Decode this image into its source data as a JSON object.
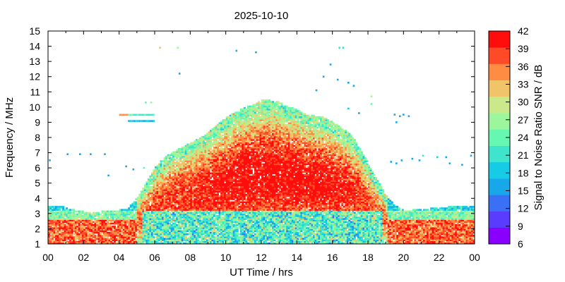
{
  "chart_data": {
    "type": "heatmap",
    "title": "2025-10-10",
    "xlabel": "UT Time / hrs",
    "ylabel": "Frequency / MHz",
    "colorbar_label": "Signal to Noise Ratio SNR / dB",
    "xlim": [
      0,
      24
    ],
    "ylim": [
      1,
      15
    ],
    "x_ticks": [
      "00",
      "02",
      "04",
      "06",
      "08",
      "10",
      "12",
      "14",
      "16",
      "18",
      "20",
      "22",
      "00"
    ],
    "y_ticks": [
      "1",
      "2",
      "3",
      "4",
      "5",
      "6",
      "7",
      "8",
      "9",
      "10",
      "11",
      "12",
      "13",
      "14",
      "15"
    ],
    "colorbar": {
      "ticks": [
        "6",
        "9",
        "12",
        "15",
        "18",
        "21",
        "24",
        "27",
        "30",
        "33",
        "36",
        "39",
        "42"
      ],
      "colors": [
        "#8a00ff",
        "#5a3cff",
        "#3a70f5",
        "#18a8ea",
        "#16cbe5",
        "#3ee4cc",
        "#66f8b0",
        "#9cf79c",
        "#c9e98a",
        "#f2c46a",
        "#ff8c42",
        "#ff4a28",
        "#ff0d0d"
      ]
    },
    "series": [
      {
        "x": [
          0,
          0.5,
          1,
          1.5,
          2,
          2.5,
          3,
          3.5,
          4,
          4.5,
          5,
          5.5,
          6,
          6.5,
          7,
          7.5,
          8,
          8.5,
          9,
          9.5,
          10,
          10.5,
          11,
          11.5,
          12,
          12.5,
          13,
          13.5,
          14,
          14.5,
          15,
          15.5,
          16,
          16.5,
          17,
          17.5,
          18,
          18.5,
          19,
          19.5,
          20,
          20.5,
          21,
          21.5,
          22,
          22.5,
          23,
          23.5,
          24
        ],
        "values": [
          3.5,
          3.5,
          3.4,
          3.2,
          3.1,
          3.0,
          3.1,
          3.2,
          3.2,
          3.3,
          4.0,
          5.0,
          6.0,
          6.6,
          7.0,
          7.3,
          7.6,
          7.9,
          8.3,
          8.8,
          9.3,
          9.6,
          9.9,
          10.1,
          10.4,
          10.4,
          10.3,
          10.0,
          9.8,
          9.5,
          9.4,
          9.3,
          9.0,
          8.6,
          8.2,
          7.4,
          6.3,
          5.2,
          4.2,
          3.5,
          3.2,
          3.2,
          3.3,
          3.3,
          3.4,
          3.4,
          3.5,
          3.5,
          3.5
        ]
      }
    ]
  }
}
